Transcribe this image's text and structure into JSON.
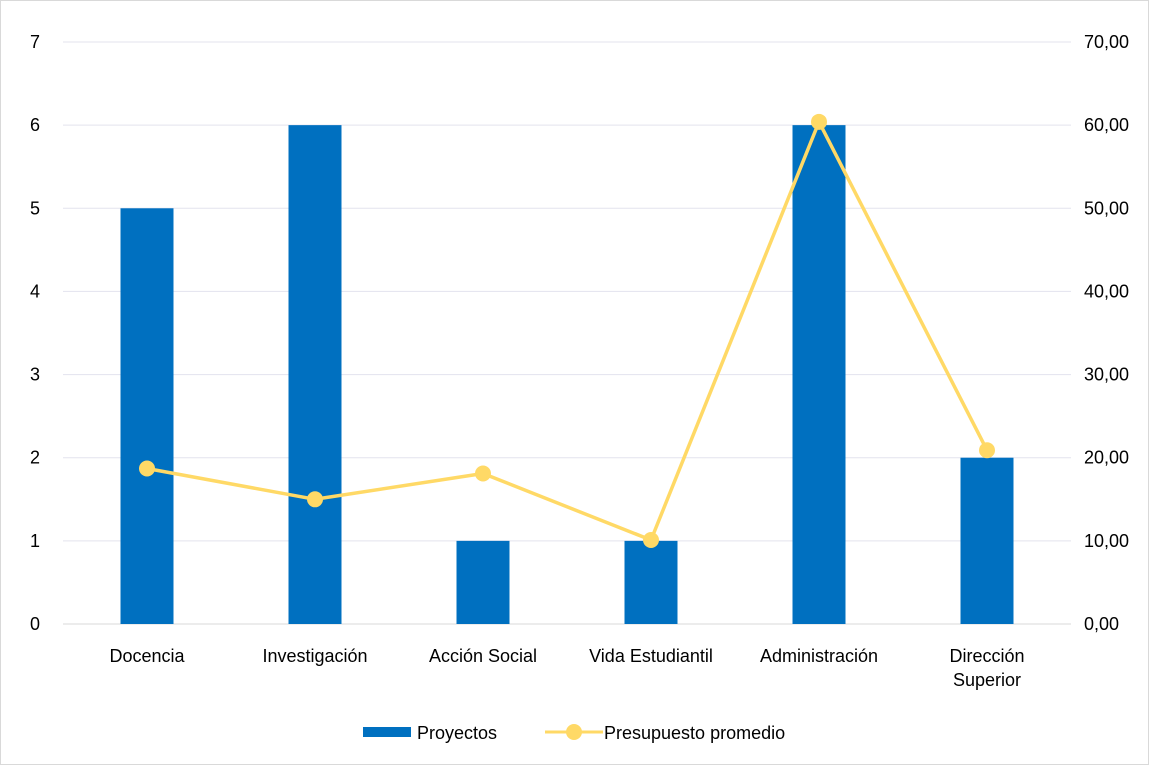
{
  "chart_data": {
    "type": "bar",
    "categories": [
      [
        "Docencia"
      ],
      [
        "Investigación"
      ],
      [
        "Acción Social"
      ],
      [
        "Vida Estudiantil"
      ],
      [
        "Administración"
      ],
      [
        "Dirección",
        "Superior"
      ]
    ],
    "series": [
      {
        "name": "Proyectos",
        "type": "bar",
        "axis": "left",
        "color": "#0070C0",
        "values": [
          5,
          6,
          1,
          1,
          6,
          2
        ]
      },
      {
        "name": "Presupuesto promedio",
        "type": "line",
        "axis": "right",
        "color": "#FFD966",
        "values": [
          18.7,
          15.0,
          18.1,
          10.1,
          60.4,
          20.9
        ]
      }
    ],
    "y_left": {
      "range": [
        0,
        7
      ],
      "ticks": [
        "0",
        "1",
        "2",
        "3",
        "4",
        "5",
        "6",
        "7"
      ]
    },
    "y_right": {
      "range": [
        0,
        70
      ],
      "ticks": [
        "0,00",
        "10,00",
        "20,00",
        "30,00",
        "40,00",
        "50,00",
        "60,00",
        "70,00"
      ]
    },
    "grid": true,
    "legend": "bottom",
    "title": "",
    "xlabel": "",
    "ylabel": ""
  }
}
